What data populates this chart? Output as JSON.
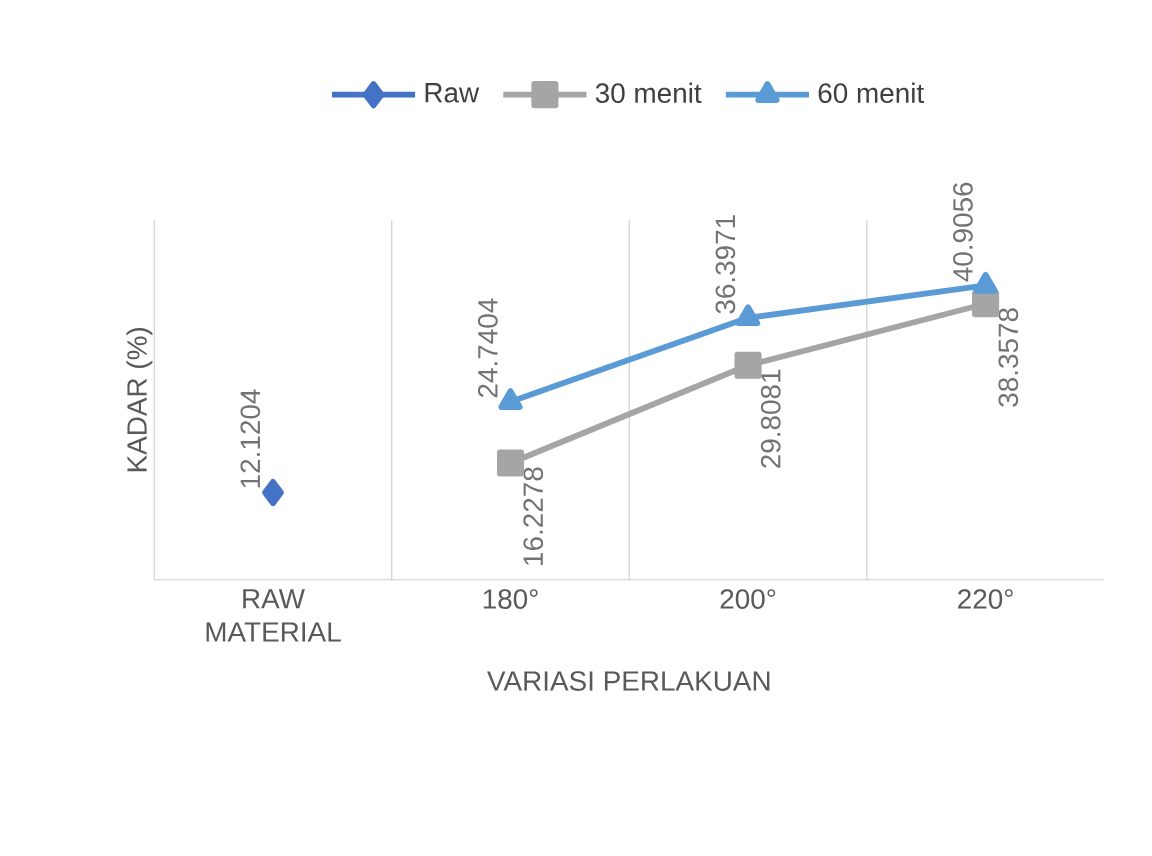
{
  "chart_data": {
    "type": "line",
    "xlabel": "VARIASI PERLAKUAN",
    "ylabel": "KADAR (%)",
    "categories": [
      "RAW MATERIAL",
      "180°",
      "200°",
      "220°"
    ],
    "series": [
      {
        "name": "Raw",
        "color": "#4472c4",
        "marker": "diamond",
        "values": [
          12.1204,
          null,
          null,
          null
        ],
        "value_labels": [
          "12.1204",
          null,
          null,
          null
        ]
      },
      {
        "name": "30 menit",
        "color": "#a5a5a5",
        "marker": "square",
        "values": [
          null,
          16.2278,
          29.8081,
          38.3578
        ],
        "value_labels": [
          null,
          "16.2278",
          "29.8081",
          "38.3578"
        ]
      },
      {
        "name": "60 menit",
        "color": "#5b9bd5",
        "marker": "triangle",
        "values": [
          null,
          24.7404,
          36.3971,
          40.9056
        ],
        "value_labels": [
          null,
          "24.7404",
          "36.3971",
          "40.9056"
        ]
      }
    ],
    "ylim": [
      0,
      50
    ],
    "tick_labels": "x",
    "grid": "x",
    "legend": "top"
  }
}
